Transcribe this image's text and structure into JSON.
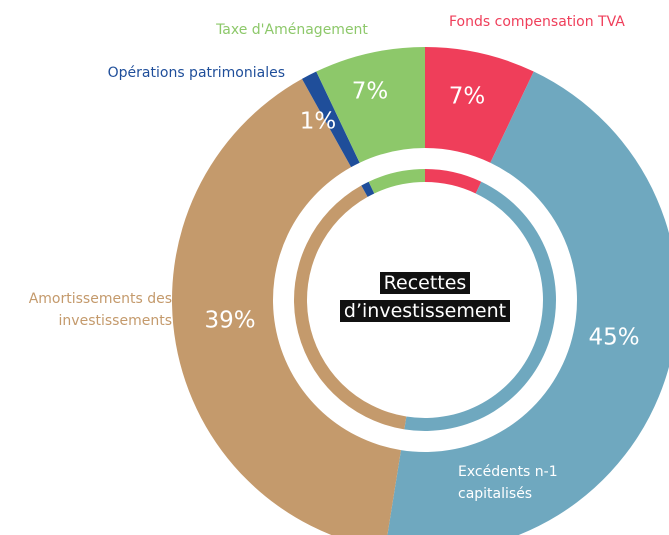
{
  "chart_data": {
    "type": "donut",
    "title": [
      "Recettes",
      "d’investissement"
    ],
    "categories": [
      "Fonds compensation TVA",
      "Excédents n-1 capitalisés",
      "Amortissements des investissements",
      "Opérations patrimoniales",
      "Taxe d'Aménagement"
    ],
    "values": [
      7,
      45,
      39,
      1,
      7
    ],
    "value_labels": [
      "7%",
      "45%",
      "39%",
      "1%",
      "7%"
    ],
    "colors": [
      "#ef3e5a",
      "#6fa8bf",
      "#c49a6c",
      "#1f4e9a",
      "#8dc86a"
    ]
  }
}
